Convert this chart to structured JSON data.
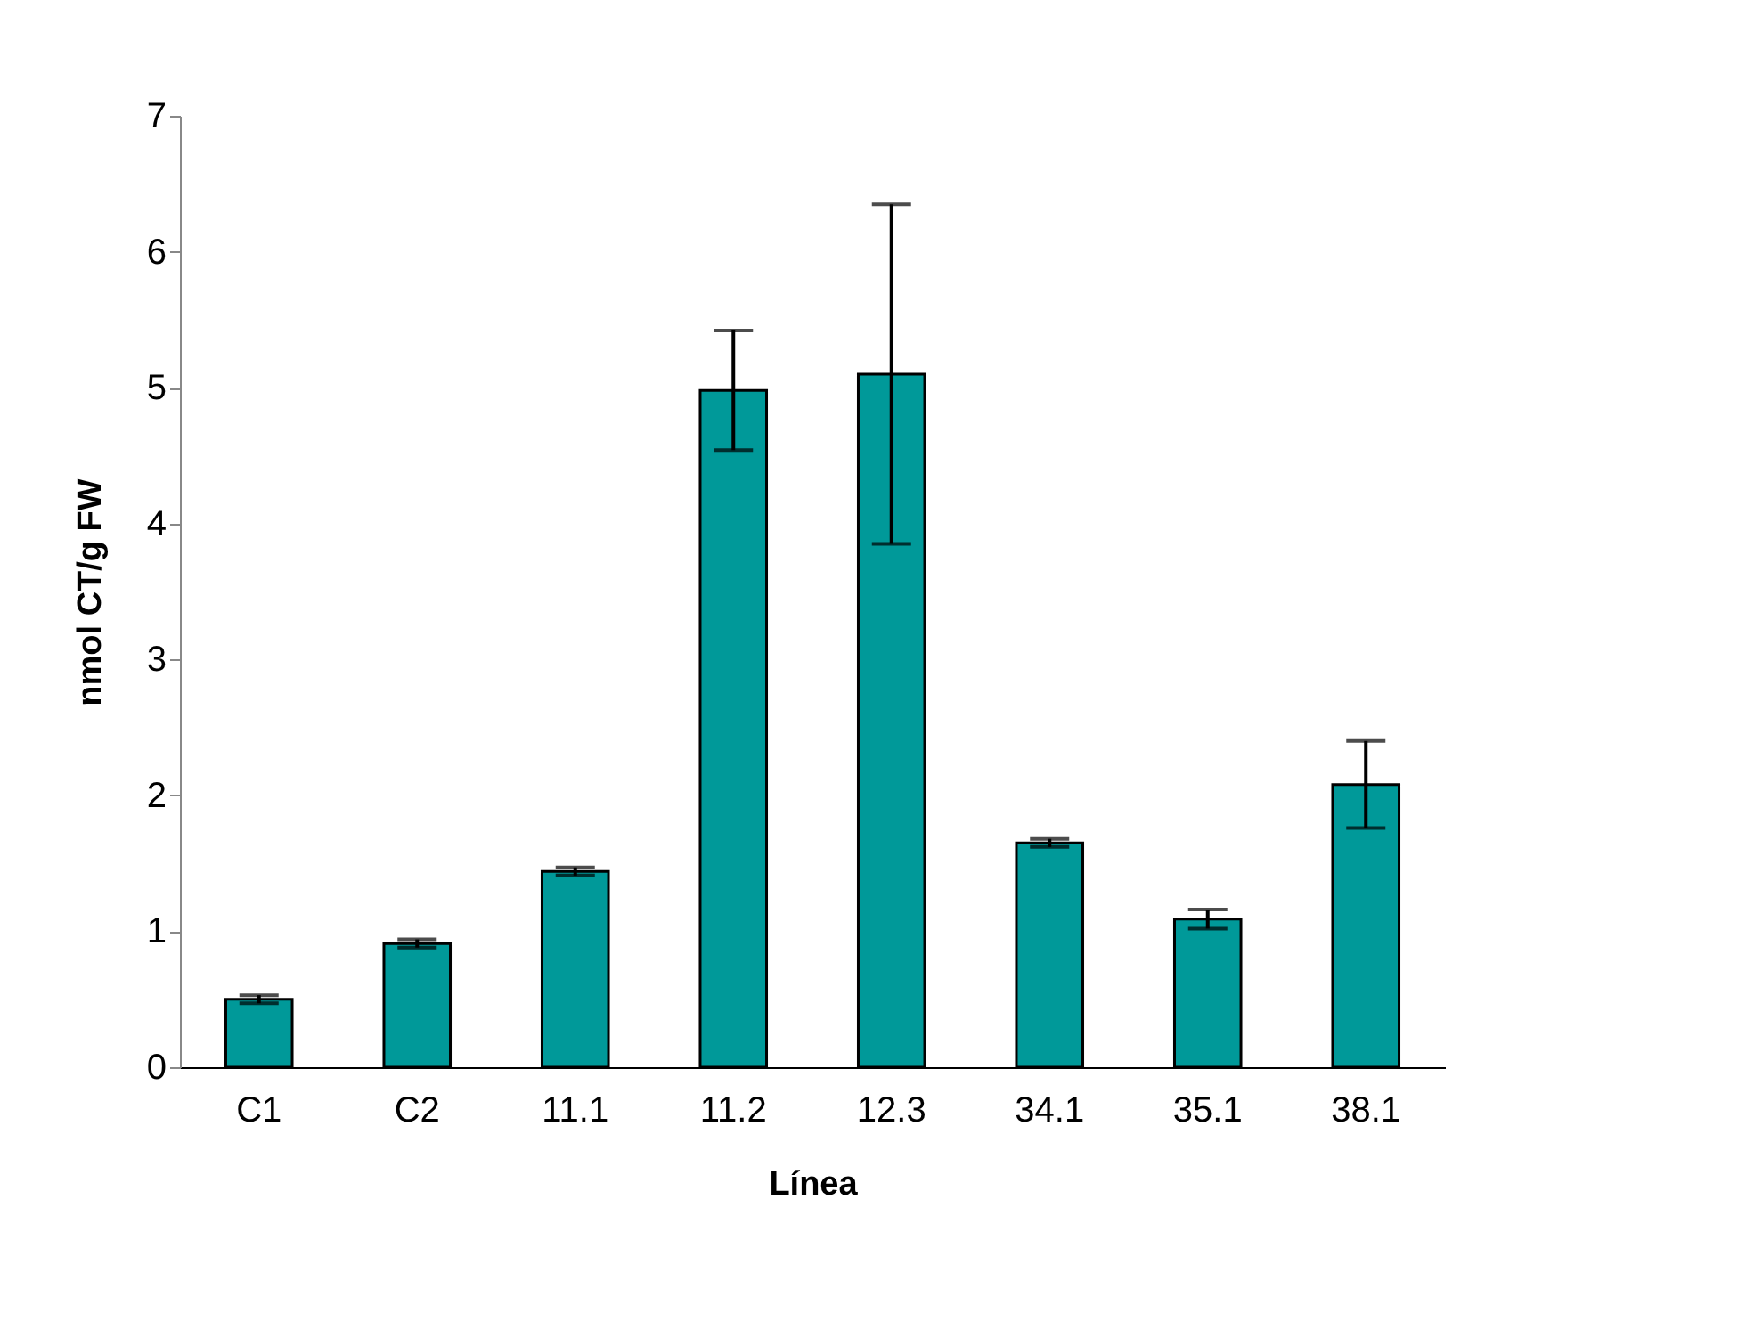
{
  "chart_data": {
    "type": "bar",
    "xlabel": "Línea",
    "ylabel": "nmol CT/g FW",
    "categories": [
      "C1",
      "C2",
      "11.1",
      "11.2",
      "12.3",
      "34.1",
      "35.1",
      "38.1"
    ],
    "values": [
      0.5,
      0.91,
      1.44,
      4.98,
      5.1,
      1.65,
      1.09,
      2.08
    ],
    "errors": [
      0.03,
      0.03,
      0.03,
      0.44,
      1.25,
      0.03,
      0.07,
      0.32
    ],
    "color": "#009999",
    "ylim": [
      0,
      7
    ],
    "yticks": [
      0,
      1,
      2,
      3,
      4,
      5,
      6,
      7
    ],
    "grid": false
  }
}
